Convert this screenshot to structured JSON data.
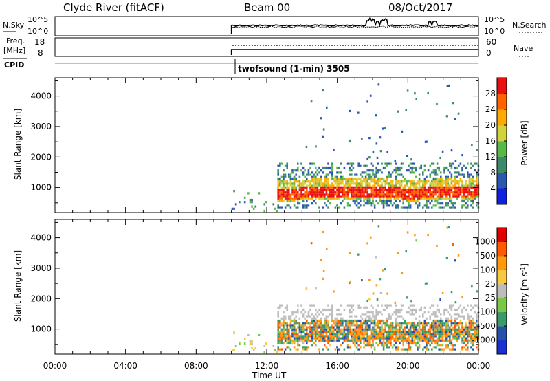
{
  "header": {
    "station": "Clyde River (fitACF)",
    "beam": "Beam 00",
    "date": "08/Oct/2017"
  },
  "top_panels": {
    "nsky_label": "N.Sky",
    "nsky_ticks": [
      "10^5",
      "10^0"
    ],
    "nsearch_label": "N.Search",
    "nsearch_ticks": [
      "10^5",
      "10^0"
    ],
    "freq_label": "Freq.",
    "freq_unit": "[MHz]",
    "freq_ticks": [
      "18",
      "8"
    ],
    "nave_label": "Nave",
    "nave_ticks": [
      "60",
      "0"
    ],
    "cpid_label": "CPID",
    "cpid_text": "twofsound (1-min) 3505"
  },
  "x_axis": {
    "label": "Time UT",
    "ticks": [
      "00:00",
      "04:00",
      "08:00",
      "12:00",
      "16:00",
      "20:00",
      "00:00"
    ]
  },
  "colors": {
    "power": [
      "#1020e0",
      "#2a58b0",
      "#3c8a6a",
      "#58b848",
      "#d2d23a",
      "#ffaa00",
      "#ff6400",
      "#e81010"
    ],
    "velocity": [
      "#e00000",
      "#ff5a00",
      "#ff9a10",
      "#f8c840",
      "#bcbcbc",
      "#7ac848",
      "#3c9a6a",
      "#2850a8",
      "#1a30d0"
    ]
  },
  "chart_data": [
    {
      "type": "heatmap",
      "name": "power",
      "ylabel": "Slant Range [km]",
      "xlabel": "",
      "yticks": [
        "1000",
        "2000",
        "3000",
        "4000"
      ],
      "ylim": [
        180,
        4600
      ],
      "xlim": [
        0,
        24
      ],
      "colorbar_label": "Power [dB]",
      "colorbar_ticks": [
        "4",
        "8",
        "12",
        "16",
        "20",
        "24",
        "28"
      ],
      "colorbar_range": [
        0,
        32
      ],
      "bands": [
        {
          "t0": 12.6,
          "t1": 23.9,
          "r0": 1000,
          "r1": 1700,
          "level": "weak"
        },
        {
          "t0": 12.6,
          "t1": 23.9,
          "r0": 500,
          "r1": 1000,
          "level": "strong"
        }
      ]
    },
    {
      "type": "heatmap",
      "name": "velocity",
      "ylabel": "Slant Range [km]",
      "xlabel": "Time UT",
      "yticks": [
        "1000",
        "2000",
        "3000",
        "4000"
      ],
      "ylim": [
        180,
        4600
      ],
      "xlim": [
        0,
        24
      ],
      "colorbar_label": "Velocity [m s^-1]",
      "colorbar_ticks": [
        "1000",
        "500",
        "100",
        "25",
        "-25",
        "-100",
        "-500",
        "-1000"
      ]
    }
  ]
}
